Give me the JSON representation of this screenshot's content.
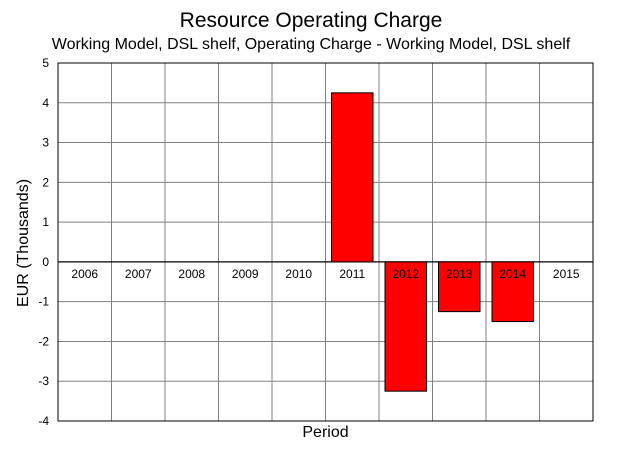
{
  "chart_data": {
    "type": "bar",
    "title": "Resource Operating Charge",
    "subtitle": "Working Model, DSL shelf, Operating Charge - Working Model, DSL shelf",
    "xlabel": "Period",
    "ylabel": "EUR (Thousands)",
    "categories": [
      "2006",
      "2007",
      "2008",
      "2009",
      "2010",
      "2011",
      "2012",
      "2013",
      "2014",
      "2015"
    ],
    "values": [
      0,
      0,
      0,
      0,
      0,
      4.25,
      -3.25,
      -1.25,
      -1.5,
      0
    ],
    "ylim": [
      -4,
      5
    ],
    "yticks": [
      -4,
      -3,
      -2,
      -1,
      0,
      1,
      2,
      3,
      4,
      5
    ],
    "grid": true,
    "bar_color": "#ff0000",
    "gridline_color": "#808080"
  }
}
